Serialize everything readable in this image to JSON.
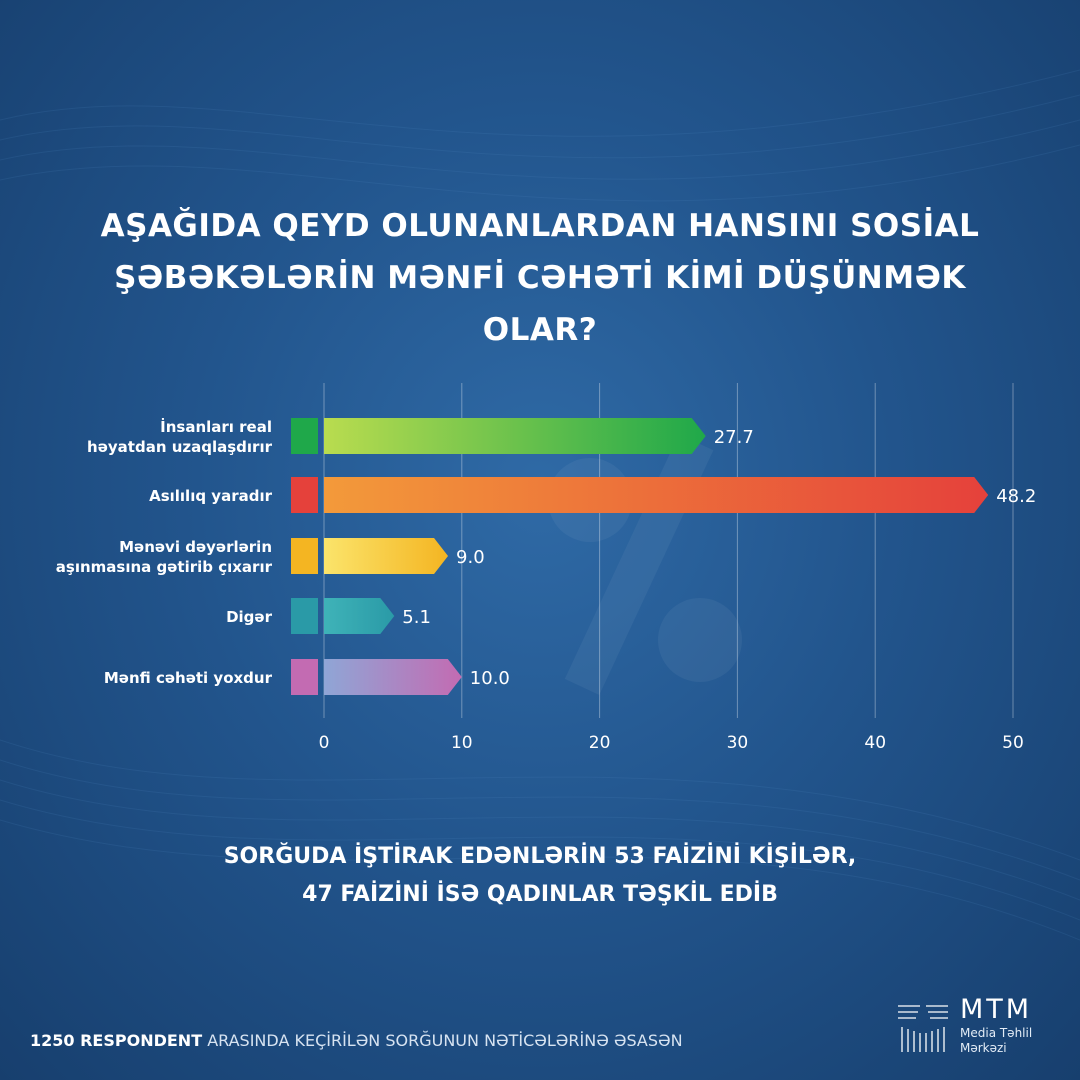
{
  "header": {
    "title_line1": "AŞAĞIDA QEYD OLUNANLARDAN HANSINI SOSİAL",
    "title_line2": "ŞƏBƏKƏLƏRİN MƏNFİ CƏHƏTİ KİMİ DÜŞÜNMƏK OLAR?"
  },
  "chart_data": {
    "type": "bar",
    "orientation": "horizontal",
    "categories": [
      [
        "İnsanları real",
        "həyatdan uzaqlaşdırır"
      ],
      [
        "Asılılıq yaradır"
      ],
      [
        "Mənəvi dəyərlərin",
        "aşınmasına gətirib çıxarır"
      ],
      [
        "Digər"
      ],
      [
        "Mənfi cəhəti yoxdur"
      ]
    ],
    "values": [
      27.7,
      48.2,
      9.0,
      5.1,
      10.0
    ],
    "value_labels": [
      "27.7",
      "48.2",
      "9.0",
      "5.1",
      "10.0"
    ],
    "xlim": [
      0,
      50
    ],
    "xticks": [
      0,
      10,
      20,
      30,
      40,
      50
    ],
    "grid": true,
    "colors": [
      [
        "#b9dc4f",
        "#1fa84a"
      ],
      [
        "#f39a3a",
        "#e5413b"
      ],
      [
        "#fbe46b",
        "#f4b522"
      ],
      [
        "#3fb3b8",
        "#2a9aa7"
      ],
      [
        "#8fa6d6",
        "#c36bb2"
      ]
    ]
  },
  "footnote": {
    "line1": "SORĞUDA İŞTİRAK EDƏNLƏRİN 53 FAİZİNİ KİŞİLƏR,",
    "line2": "47 FAİZİNİ İSƏ QADINLAR TƏŞKİL EDİB"
  },
  "source": {
    "count": "1250 RESPONDENT",
    "rest": " ARASINDA KEÇİRİLƏN SORĞUNUN NƏTİCƏLƏRİNƏ ƏSASƏN"
  },
  "logo": {
    "name": "MTM",
    "sub1": "Media Təhlil",
    "sub2": "Mərkəzi"
  }
}
